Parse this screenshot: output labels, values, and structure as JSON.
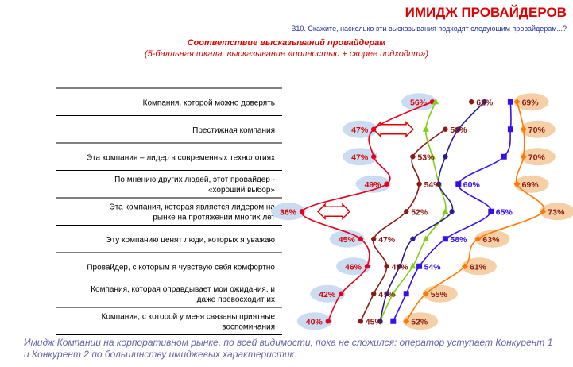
{
  "header": {
    "title": "ИМИДЖ ПРОВАЙДЕРОВ",
    "question": "B10. Скажите, насколько эти высказывания подходят следующим провайдерам...?",
    "subtitle": "Соответствие высказываний провайдерам",
    "subtitle2": "(5-балльная шкала, высказывание «полностью + скорее подходит»)"
  },
  "footnote": "Имидж Компании на корпоративном рынке, по всей видимости, пока не сложился: оператор уступает Конкурент 1 и Конкурент 2 по большинству имиджевых характеристик.",
  "chart_data": {
    "type": "line",
    "orientation": "horizontal",
    "categories": [
      "Компания, которой можно доверять",
      "Престижная компания",
      "Эта компания – лидер в современных технологиях",
      "По мнению других людей, этот провайдер - «хороший выбор»",
      "Эта компания, которая является лидером на рынке на протяжении многих лет",
      "Эту компанию ценят люди, которых я уважаю",
      "Провайдер, с которым я чувствую себя комфортно",
      "Компания, которая оправдывает мои ожидания, и даже превосходит их",
      "Компания, с которой у меня связаны приятные воспоминания"
    ],
    "series": [
      {
        "color": "#e8001c",
        "marker": "circle",
        "labeled": true,
        "highlight": "#c9dcf2",
        "values": [
          56,
          47,
          47,
          49,
          36,
          45,
          46,
          42,
          40
        ],
        "labels": [
          "56%",
          "47%",
          "47%",
          "49%",
          "36%",
          "45%",
          "46%",
          "42%",
          "40%"
        ]
      },
      {
        "color": "#8b1a10",
        "marker": "circle",
        "labeled": true,
        "values": [
          null,
          58,
          53,
          54,
          52,
          47,
          49,
          47,
          45
        ],
        "labels": [
          "",
          "58%",
          "53%",
          "54%",
          "52%",
          "47%",
          "49%",
          "47%",
          "45%"
        ]
      },
      {
        "color": "#7fd010",
        "marker": "triangle",
        "labeled": false,
        "values": [
          56.5,
          55,
          56,
          57,
          58,
          55,
          53,
          50,
          48
        ]
      },
      {
        "color": "#8b1a10",
        "marker": "circle",
        "labeled": false,
        "values": [
          62,
          null,
          null,
          null,
          null,
          null,
          null,
          null,
          null
        ]
      },
      {
        "color": "#2b1d8f",
        "marker": "circle",
        "labeled": false,
        "values": [
          64,
          60,
          58,
          57,
          59,
          53,
          51,
          49,
          48
        ]
      },
      {
        "color": "#3311ee",
        "marker": "square",
        "labeled": true,
        "values": [
          68,
          68,
          67,
          60,
          65,
          58,
          54,
          52,
          50
        ],
        "labels": [
          "",
          "",
          "",
          "60%",
          "65%",
          "58%",
          "54%",
          "",
          ""
        ]
      },
      {
        "color": "#ff7a00",
        "marker": "diamond",
        "labeled": true,
        "highlight": "#f5cfa5",
        "values": [
          69,
          70,
          70,
          69,
          73,
          63,
          61,
          55,
          52
        ],
        "labels": [
          "69%",
          "70%",
          "70%",
          "69%",
          "73%",
          "63%",
          "61%",
          "55%",
          "52%"
        ]
      }
    ],
    "extra_labels": [
      "62%"
    ],
    "colors": {
      "row_border": "#000000",
      "arrow": "#e00000"
    }
  }
}
